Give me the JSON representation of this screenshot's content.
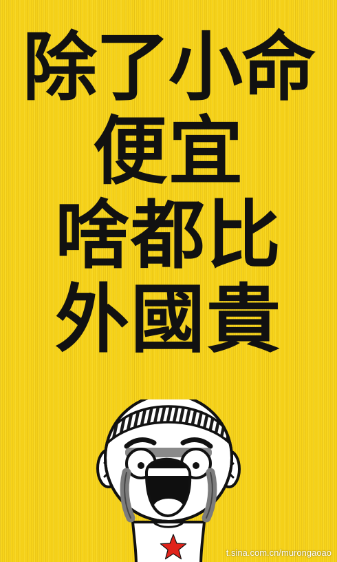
{
  "poster": {
    "background_color": "#F7D31A",
    "headline_lines": [
      "除了小命",
      "便宜",
      "啥都比",
      "外國貴"
    ]
  },
  "character": {
    "icon": "crying-laughing-boy-icon",
    "emblem": "red-star-icon",
    "emblem_color": "#E0231B"
  },
  "watermark": {
    "text": "t.sina.com.cn/murongaoao"
  }
}
